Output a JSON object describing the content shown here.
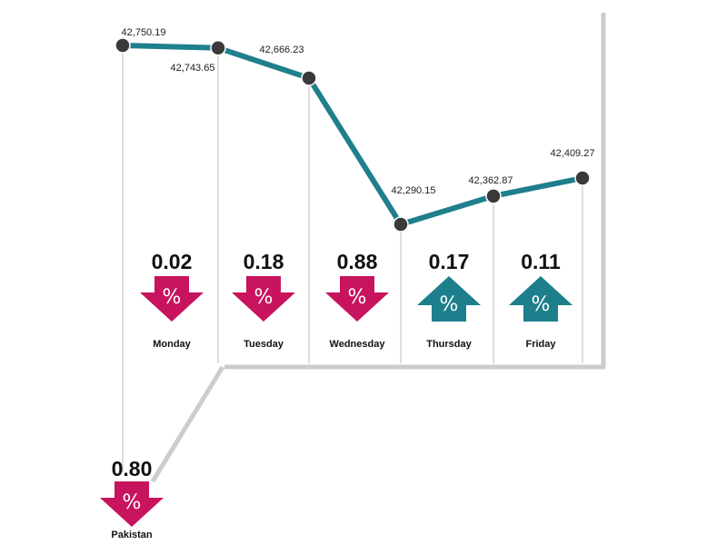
{
  "chart_data": {
    "type": "line",
    "categories": [
      "",
      "",
      "",
      "",
      "",
      ""
    ],
    "values": [
      42750.19,
      42743.65,
      42666.23,
      42290.15,
      42362.87,
      42409.27
    ],
    "value_labels": [
      "42,750.19",
      "42,743.65",
      "42,666.23",
      "42,290.15",
      "42,362.87",
      "42,409.27"
    ],
    "ylim": [
      42290.15,
      42750.19
    ],
    "grid": false,
    "daily_change": [
      {
        "day": "Monday",
        "value": "0.02",
        "direction": "down"
      },
      {
        "day": "Tuesday",
        "value": "0.18",
        "direction": "down"
      },
      {
        "day": "Wednesday",
        "value": "0.88",
        "direction": "down"
      },
      {
        "day": "Thursday",
        "value": "0.17",
        "direction": "up"
      },
      {
        "day": "Friday",
        "value": "0.11",
        "direction": "up"
      }
    ],
    "summary": {
      "label": "Pakistan",
      "value": "0.80",
      "direction": "down",
      "symbol": "%"
    }
  },
  "colors": {
    "line": "#1f7f8c",
    "marker": "#3a3a3a",
    "down": "#c8135e",
    "up": "#1d7f8c",
    "frame": "#cccccc",
    "separator": "#bdbdbd"
  }
}
